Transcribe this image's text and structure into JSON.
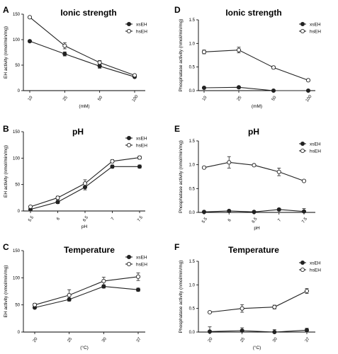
{
  "colors": {
    "ink": "#000000",
    "series": "#222222",
    "background": "#ffffff"
  },
  "chart_data": [
    {
      "panel": "A",
      "type": "line",
      "title": "Ionic strength",
      "xlabel": "(mM)",
      "ylabel": "EH activity (nmol/min/mg)",
      "categories": [
        "10",
        "25",
        "50",
        "100"
      ],
      "ylim": [
        0,
        150
      ],
      "yticks": [
        0,
        50,
        100,
        150
      ],
      "series": [
        {
          "name": "xsEH",
          "marker": "filled",
          "values": [
            97,
            72,
            48,
            27
          ],
          "errors": [
            2,
            4,
            4,
            2
          ]
        },
        {
          "name": "hsEH",
          "marker": "open",
          "values": [
            144,
            88,
            55,
            30
          ],
          "errors": [
            2,
            6,
            4,
            2
          ]
        }
      ]
    },
    {
      "panel": "D",
      "type": "line",
      "title": "Ionic strength",
      "xlabel": "(mM)",
      "ylabel": "Phosphatase activity (nmol/min/mg)",
      "categories": [
        "10",
        "25",
        "50",
        "100"
      ],
      "ylim": [
        0,
        1.5
      ],
      "yticks": [
        "0.0",
        "0.5",
        "1.0",
        "1.5"
      ],
      "series": [
        {
          "name": "xsEH",
          "marker": "filled",
          "values": [
            0.06,
            0.07,
            0.0,
            0.0
          ],
          "errors": [
            0.01,
            0.01,
            0.01,
            0.01
          ]
        },
        {
          "name": "hsEH",
          "marker": "open",
          "values": [
            0.82,
            0.86,
            0.49,
            0.22
          ],
          "errors": [
            0.04,
            0.06,
            0.03,
            0.02
          ]
        }
      ]
    },
    {
      "panel": "B",
      "type": "line",
      "title": "pH",
      "xlabel": "pH",
      "ylabel": "EH activity (nmol/min/mg)",
      "categories": [
        "5.5",
        "6",
        "6.5",
        "7",
        "7.5"
      ],
      "ylim": [
        0,
        150
      ],
      "yticks": [
        0,
        50,
        100,
        150
      ],
      "series": [
        {
          "name": "xsEH",
          "marker": "filled",
          "values": [
            3,
            17,
            45,
            84,
            84
          ],
          "errors": [
            2,
            3,
            5,
            3,
            3
          ]
        },
        {
          "name": "hsEH",
          "marker": "open",
          "values": [
            8,
            25,
            52,
            94,
            101
          ],
          "errors": [
            2,
            3,
            7,
            3,
            3
          ]
        }
      ]
    },
    {
      "panel": "E",
      "type": "line",
      "title": "pH",
      "xlabel": "pH",
      "ylabel": "Phosphatase activity (nmol/min/mg)",
      "categories": [
        "5.5",
        "6",
        "6.5",
        "7",
        "7.5"
      ],
      "ylim": [
        0,
        1.5
      ],
      "yticks": [
        "0.0",
        "0.5",
        "1.0",
        "1.5"
      ],
      "series": [
        {
          "name": "xsEH",
          "marker": "filled",
          "values": [
            0.01,
            0.03,
            0.01,
            0.06,
            0.02
          ],
          "errors": [
            0.01,
            0.02,
            0.01,
            0.02,
            0.06
          ]
        },
        {
          "name": "hsEH",
          "marker": "open",
          "values": [
            0.94,
            1.05,
            0.99,
            0.85,
            0.66
          ],
          "errors": [
            0.02,
            0.12,
            0.02,
            0.08,
            0.02
          ]
        }
      ]
    },
    {
      "panel": "C",
      "type": "line",
      "title": "Temperature",
      "xlabel": "(°C)",
      "ylabel": "EH activity (nmol/min/mg)",
      "categories": [
        "20",
        "25",
        "30",
        "37"
      ],
      "ylim": [
        0,
        150
      ],
      "yticks": [
        0,
        50,
        100,
        150
      ],
      "series": [
        {
          "name": "xsEH",
          "marker": "filled",
          "values": [
            45,
            60,
            84,
            78
          ],
          "errors": [
            2,
            3,
            3,
            3
          ]
        },
        {
          "name": "hsEH",
          "marker": "open",
          "values": [
            50,
            68,
            94,
            102
          ],
          "errors": [
            3,
            10,
            7,
            7
          ]
        }
      ]
    },
    {
      "panel": "F",
      "type": "line",
      "title": "Temperature",
      "xlabel": "(°C)",
      "ylabel": "Phosphatase activity (nmol/min/mg)",
      "categories": [
        "20",
        "25",
        "30",
        "37"
      ],
      "ylim": [
        0,
        1.5
      ],
      "yticks": [
        "0.0",
        "0.5",
        "1.0",
        "1.5"
      ],
      "series": [
        {
          "name": "xsEH",
          "marker": "filled",
          "values": [
            0.01,
            0.03,
            0.0,
            0.04
          ],
          "errors": [
            0.1,
            0.06,
            0.05,
            0.04
          ]
        },
        {
          "name": "hsEH",
          "marker": "open",
          "values": [
            0.42,
            0.5,
            0.53,
            0.87
          ],
          "errors": [
            0.02,
            0.08,
            0.04,
            0.05
          ]
        }
      ]
    }
  ]
}
